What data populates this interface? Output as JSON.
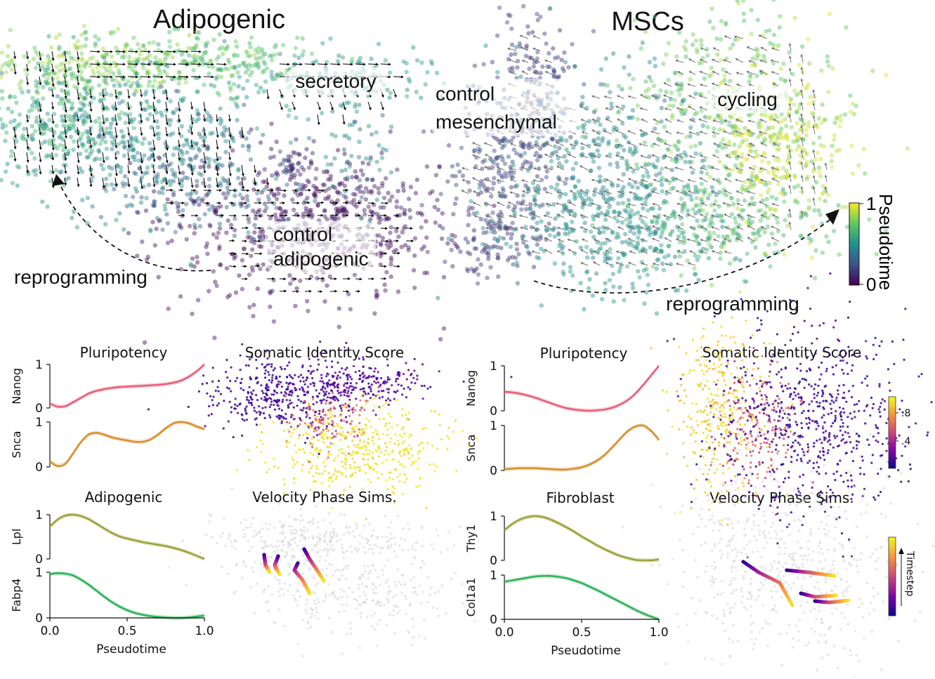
{
  "colors": {
    "viridis": [
      "#440154",
      "#3b528b",
      "#21918c",
      "#5ec962",
      "#fde725"
    ],
    "plasma": [
      "#0d0887",
      "#7e03a8",
      "#cc4778",
      "#f89540",
      "#f0f921"
    ],
    "pluri_curve": "#e8607a",
    "snca_curve": "#d9902e",
    "lpl_curve": "#9aa33a",
    "fabp4_curve": "#2fb35c",
    "thy1_curve": "#9aa33a",
    "col1a1_curve": "#2fb35c",
    "background_cells": "#d6d6d6"
  },
  "top": {
    "left_title": "Adipogenic",
    "right_title": "MSCs",
    "left_labels": {
      "secretory": "secretory",
      "control_1": "control",
      "control_2": "adipogenic",
      "reprogramming": "reprogramming"
    },
    "right_labels": {
      "control_1": "control",
      "control_2": "mesenchymal",
      "cycling": "cycling",
      "reprogramming": "reprogramming"
    },
    "colorbar": {
      "label": "Pseudotime",
      "max_label": "1",
      "min_label": "0"
    }
  },
  "chart_data": [
    {
      "type": "line",
      "title": "Pluripotency",
      "panel": "Adipogenic",
      "x": [
        0.0,
        0.05,
        0.1,
        0.15,
        0.2,
        0.25,
        0.3,
        0.35,
        0.4,
        0.45,
        0.5,
        0.55,
        0.6,
        0.65,
        0.7,
        0.75,
        0.8,
        0.85,
        0.9,
        0.95,
        1.0
      ],
      "series": [
        {
          "gene": "Nanog",
          "values": [
            0.1,
            0.03,
            0.04,
            0.13,
            0.23,
            0.33,
            0.39,
            0.43,
            0.46,
            0.48,
            0.49,
            0.5,
            0.51,
            0.52,
            0.53,
            0.55,
            0.58,
            0.63,
            0.72,
            0.84,
            1.0
          ]
        },
        {
          "gene": "Snca",
          "values": [
            0.12,
            0.02,
            0.07,
            0.3,
            0.55,
            0.72,
            0.76,
            0.72,
            0.66,
            0.62,
            0.59,
            0.56,
            0.56,
            0.61,
            0.72,
            0.86,
            0.97,
            1.0,
            0.97,
            0.9,
            0.84
          ]
        }
      ],
      "xlim": [
        0,
        1
      ],
      "ylim": [
        0,
        1
      ],
      "xlabel": ""
    },
    {
      "type": "line",
      "title": "Adipogenic",
      "panel": "Adipogenic",
      "x": [
        0.0,
        0.05,
        0.1,
        0.15,
        0.2,
        0.25,
        0.3,
        0.35,
        0.4,
        0.45,
        0.5,
        0.55,
        0.6,
        0.65,
        0.7,
        0.75,
        0.8,
        0.85,
        0.9,
        0.95,
        1.0
      ],
      "series": [
        {
          "gene": "Lpl",
          "values": [
            0.73,
            0.89,
            0.98,
            1.0,
            0.97,
            0.9,
            0.8,
            0.69,
            0.59,
            0.51,
            0.46,
            0.42,
            0.38,
            0.35,
            0.32,
            0.29,
            0.25,
            0.2,
            0.14,
            0.07,
            0.0
          ]
        },
        {
          "gene": "Fabp4",
          "values": [
            0.96,
            0.98,
            0.97,
            0.93,
            0.84,
            0.73,
            0.6,
            0.47,
            0.35,
            0.25,
            0.17,
            0.11,
            0.07,
            0.04,
            0.02,
            0.01,
            0.0,
            0.0,
            0.01,
            0.03,
            0.05
          ]
        }
      ],
      "xlim": [
        0,
        1
      ],
      "ylim": [
        0,
        1
      ],
      "xticks": [
        "0.0",
        "0.5",
        "1.0"
      ],
      "xlabel": "Pseudotime"
    },
    {
      "type": "line",
      "title": "Pluripotency",
      "panel": "MSCs",
      "x": [
        0.0,
        0.05,
        0.1,
        0.15,
        0.2,
        0.25,
        0.3,
        0.35,
        0.4,
        0.45,
        0.5,
        0.55,
        0.6,
        0.65,
        0.7,
        0.75,
        0.8,
        0.85,
        0.9,
        0.95,
        1.0
      ],
      "series": [
        {
          "gene": "Nanog",
          "values": [
            0.42,
            0.41,
            0.38,
            0.34,
            0.29,
            0.23,
            0.17,
            0.11,
            0.06,
            0.03,
            0.01,
            0.0,
            0.01,
            0.03,
            0.07,
            0.14,
            0.24,
            0.39,
            0.58,
            0.79,
            1.0
          ]
        },
        {
          "gene": "Snca",
          "values": [
            0.03,
            0.04,
            0.05,
            0.05,
            0.05,
            0.04,
            0.03,
            0.02,
            0.02,
            0.04,
            0.07,
            0.13,
            0.22,
            0.35,
            0.52,
            0.71,
            0.88,
            0.98,
            1.0,
            0.88,
            0.68
          ]
        }
      ],
      "xlim": [
        0,
        1
      ],
      "ylim": [
        0,
        1
      ],
      "xlabel": ""
    },
    {
      "type": "line",
      "title": "Fibroblast",
      "panel": "MSCs",
      "x": [
        0.0,
        0.05,
        0.1,
        0.15,
        0.2,
        0.25,
        0.3,
        0.35,
        0.4,
        0.45,
        0.5,
        0.55,
        0.6,
        0.65,
        0.7,
        0.75,
        0.8,
        0.85,
        0.9,
        0.95,
        1.0
      ],
      "series": [
        {
          "gene": "Thy1",
          "values": [
            0.68,
            0.82,
            0.92,
            0.98,
            1.0,
            0.98,
            0.92,
            0.84,
            0.75,
            0.65,
            0.54,
            0.44,
            0.34,
            0.25,
            0.17,
            0.1,
            0.05,
            0.01,
            0.0,
            0.0,
            0.02
          ]
        },
        {
          "gene": "Col1a1",
          "values": [
            0.85,
            0.88,
            0.91,
            0.94,
            0.97,
            0.98,
            0.98,
            0.96,
            0.93,
            0.88,
            0.82,
            0.74,
            0.66,
            0.57,
            0.48,
            0.39,
            0.3,
            0.21,
            0.13,
            0.06,
            0.0
          ]
        }
      ],
      "xlim": [
        0,
        1
      ],
      "ylim": [
        0,
        1
      ],
      "xticks": [
        "0.0",
        "0.5",
        "1.0"
      ],
      "xlabel": "Pseudotime"
    }
  ],
  "line_axes": {
    "ytick_1": "1",
    "ytick_0": "0"
  },
  "scatter_titles": {
    "left_somatic": "Somatic Identity Score",
    "left_velocity": "Velocity Phase Sims.",
    "right_somatic": "Somatic Identity Score",
    "right_velocity": "Velocity Phase Sims."
  },
  "somatic_colorbar": {
    "ticks": [
      ".8",
      ".4"
    ]
  },
  "timestep_colorbar": {
    "label": "Timestep"
  }
}
